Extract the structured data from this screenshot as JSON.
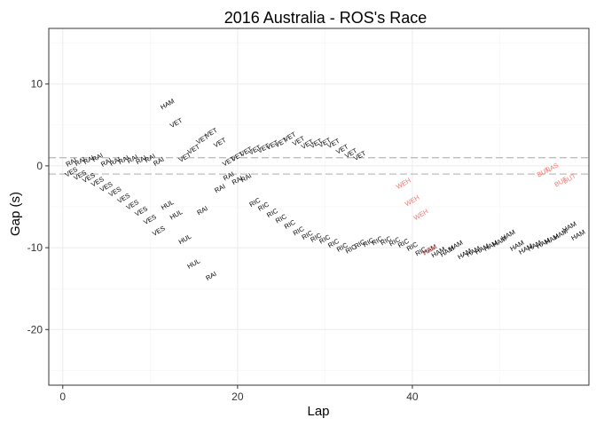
{
  "chart_data": {
    "type": "scatter",
    "title": "2016 Australia - ROS's Race",
    "xlabel": "Lap",
    "ylabel": "Gap (s)",
    "xlim": [
      -1.6,
      60.2
    ],
    "ylim": [
      -26.8,
      16.8
    ],
    "xticks": [
      0,
      20,
      40
    ],
    "yticks": [
      -20,
      -10,
      0,
      10
    ],
    "grid": true,
    "legend": "none",
    "reference_lines": [
      1,
      -1
    ],
    "colors": {
      "default": "#000000",
      "highlight": "#F8766D",
      "reference_line": "#BDBDBD",
      "panel_border": "#333333",
      "grid_major": "#EBEBEB",
      "grid_minor": "#F5F5F5"
    },
    "points": [
      {
        "label": "RAI",
        "x": 1,
        "y": 0.4,
        "c": "default"
      },
      {
        "label": "RAI",
        "x": 2,
        "y": 0.5,
        "c": "default"
      },
      {
        "label": "RAI",
        "x": 3,
        "y": 0.7,
        "c": "default"
      },
      {
        "label": "RAI",
        "x": 4,
        "y": 1.0,
        "c": "default"
      },
      {
        "label": "RAI",
        "x": 5,
        "y": 0.4,
        "c": "default"
      },
      {
        "label": "RAI",
        "x": 6,
        "y": 0.5,
        "c": "default"
      },
      {
        "label": "RAI",
        "x": 7,
        "y": 0.7,
        "c": "default"
      },
      {
        "label": "RAI",
        "x": 8,
        "y": 0.8,
        "c": "default"
      },
      {
        "label": "RAI",
        "x": 9,
        "y": 0.7,
        "c": "default"
      },
      {
        "label": "RAI",
        "x": 10,
        "y": 0.9,
        "c": "default"
      },
      {
        "label": "RAI",
        "x": 11,
        "y": 0.5,
        "c": "default"
      },
      {
        "label": "RAI",
        "x": 18,
        "y": -2.8,
        "c": "default"
      },
      {
        "label": "RAI",
        "x": 19,
        "y": -1.3,
        "c": "default"
      },
      {
        "label": "RAI",
        "x": 20,
        "y": -1.8,
        "c": "default"
      },
      {
        "label": "RAI",
        "x": 21,
        "y": -1.5,
        "c": "default"
      },
      {
        "label": "RAI",
        "x": 16,
        "y": -5.5,
        "c": "default"
      },
      {
        "label": "RAI",
        "x": 17,
        "y": -13.5,
        "c": "default"
      },
      {
        "label": "VES",
        "x": 1,
        "y": -0.8,
        "c": "default"
      },
      {
        "label": "VES",
        "x": 2,
        "y": -1.2,
        "c": "default"
      },
      {
        "label": "VES",
        "x": 3,
        "y": -1.5,
        "c": "default"
      },
      {
        "label": "VES",
        "x": 4,
        "y": -2.0,
        "c": "default"
      },
      {
        "label": "VES",
        "x": 5,
        "y": -2.6,
        "c": "default"
      },
      {
        "label": "VES",
        "x": 6,
        "y": -3.2,
        "c": "default"
      },
      {
        "label": "VES",
        "x": 7,
        "y": -4.0,
        "c": "default"
      },
      {
        "label": "VES",
        "x": 8,
        "y": -4.8,
        "c": "default"
      },
      {
        "label": "VES",
        "x": 9,
        "y": -5.6,
        "c": "default"
      },
      {
        "label": "VES",
        "x": 10,
        "y": -6.6,
        "c": "default"
      },
      {
        "label": "VES",
        "x": 11,
        "y": -8.0,
        "c": "default"
      },
      {
        "label": "HUL",
        "x": 12,
        "y": -4.8,
        "c": "default"
      },
      {
        "label": "HUL",
        "x": 13,
        "y": -6.0,
        "c": "default"
      },
      {
        "label": "HUL",
        "x": 14,
        "y": -9.0,
        "c": "default"
      },
      {
        "label": "HUL",
        "x": 15,
        "y": -12.0,
        "c": "default"
      },
      {
        "label": "HAM",
        "x": 12,
        "y": 7.5,
        "c": "default"
      },
      {
        "label": "VET",
        "x": 13,
        "y": 5.2,
        "c": "default"
      },
      {
        "label": "VET",
        "x": 14,
        "y": 1.0,
        "c": "default"
      },
      {
        "label": "VET",
        "x": 15,
        "y": 2.0,
        "c": "default"
      },
      {
        "label": "VET",
        "x": 16,
        "y": 3.2,
        "c": "default"
      },
      {
        "label": "VET",
        "x": 17,
        "y": 4.0,
        "c": "default"
      },
      {
        "label": "VET",
        "x": 18,
        "y": 2.8,
        "c": "default"
      },
      {
        "label": "VET",
        "x": 19,
        "y": 0.5,
        "c": "default"
      },
      {
        "label": "VET",
        "x": 20,
        "y": 1.1,
        "c": "default"
      },
      {
        "label": "VET",
        "x": 21,
        "y": 1.7,
        "c": "default"
      },
      {
        "label": "VET",
        "x": 22,
        "y": 1.9,
        "c": "default"
      },
      {
        "label": "VET",
        "x": 23,
        "y": 2.1,
        "c": "default"
      },
      {
        "label": "VET",
        "x": 24,
        "y": 2.5,
        "c": "default"
      },
      {
        "label": "VET",
        "x": 25,
        "y": 2.8,
        "c": "default"
      },
      {
        "label": "VET",
        "x": 26,
        "y": 3.5,
        "c": "default"
      },
      {
        "label": "VET",
        "x": 27,
        "y": 3.0,
        "c": "default"
      },
      {
        "label": "VET",
        "x": 28,
        "y": 2.6,
        "c": "default"
      },
      {
        "label": "VET",
        "x": 29,
        "y": 2.7,
        "c": "default"
      },
      {
        "label": "VET",
        "x": 30,
        "y": 2.8,
        "c": "default"
      },
      {
        "label": "VET",
        "x": 31,
        "y": 2.7,
        "c": "default"
      },
      {
        "label": "VET",
        "x": 32,
        "y": 2.0,
        "c": "default"
      },
      {
        "label": "VET",
        "x": 33,
        "y": 1.5,
        "c": "default"
      },
      {
        "label": "VET",
        "x": 34,
        "y": 1.2,
        "c": "default"
      },
      {
        "label": "RIC",
        "x": 22,
        "y": -4.5,
        "c": "default"
      },
      {
        "label": "RIC",
        "x": 23,
        "y": -5.0,
        "c": "default"
      },
      {
        "label": "RIC",
        "x": 24,
        "y": -5.8,
        "c": "default"
      },
      {
        "label": "RIC",
        "x": 25,
        "y": -6.5,
        "c": "default"
      },
      {
        "label": "RIC",
        "x": 26,
        "y": -7.2,
        "c": "default"
      },
      {
        "label": "RIC",
        "x": 27,
        "y": -8.0,
        "c": "default"
      },
      {
        "label": "RIC",
        "x": 28,
        "y": -8.5,
        "c": "default"
      },
      {
        "label": "RIC",
        "x": 29,
        "y": -8.8,
        "c": "default"
      },
      {
        "label": "RIC",
        "x": 30,
        "y": -9.0,
        "c": "default"
      },
      {
        "label": "RIC",
        "x": 31,
        "y": -9.5,
        "c": "default"
      },
      {
        "label": "RIC",
        "x": 32,
        "y": -10.0,
        "c": "default"
      },
      {
        "label": "RIC",
        "x": 33,
        "y": -10.2,
        "c": "default"
      },
      {
        "label": "RIC",
        "x": 34,
        "y": -9.6,
        "c": "default"
      },
      {
        "label": "RIC",
        "x": 35,
        "y": -9.4,
        "c": "default"
      },
      {
        "label": "RIC",
        "x": 36,
        "y": -9.2,
        "c": "default"
      },
      {
        "label": "RIC",
        "x": 37,
        "y": -9.2,
        "c": "default"
      },
      {
        "label": "RIC",
        "x": 38,
        "y": -9.3,
        "c": "default"
      },
      {
        "label": "RIC",
        "x": 39,
        "y": -9.5,
        "c": "default"
      },
      {
        "label": "RIC",
        "x": 40,
        "y": -9.9,
        "c": "default"
      },
      {
        "label": "RIC",
        "x": 41,
        "y": -10.5,
        "c": "default"
      },
      {
        "label": "HAM",
        "x": 42,
        "y": -10.3,
        "c": "default"
      },
      {
        "label": "HAM",
        "x": 43,
        "y": -10.6,
        "c": "default"
      },
      {
        "label": "HAM",
        "x": 44,
        "y": -10.5,
        "c": "default"
      },
      {
        "label": "HAM",
        "x": 45,
        "y": -9.8,
        "c": "default"
      },
      {
        "label": "HAM",
        "x": 46,
        "y": -10.8,
        "c": "default"
      },
      {
        "label": "HAM",
        "x": 47,
        "y": -10.5,
        "c": "default"
      },
      {
        "label": "HAM",
        "x": 48,
        "y": -10.2,
        "c": "default"
      },
      {
        "label": "HAM",
        "x": 49,
        "y": -9.8,
        "c": "default"
      },
      {
        "label": "HAM",
        "x": 50,
        "y": -9.3,
        "c": "default"
      },
      {
        "label": "HAM",
        "x": 51,
        "y": -8.5,
        "c": "default"
      },
      {
        "label": "HAM",
        "x": 52,
        "y": -9.8,
        "c": "default"
      },
      {
        "label": "HAM",
        "x": 53,
        "y": -10.2,
        "c": "default"
      },
      {
        "label": "HAM",
        "x": 54,
        "y": -9.8,
        "c": "default"
      },
      {
        "label": "HAM",
        "x": 55,
        "y": -9.5,
        "c": "default"
      },
      {
        "label": "HAM",
        "x": 56,
        "y": -9.0,
        "c": "default"
      },
      {
        "label": "HAM",
        "x": 57,
        "y": -8.4,
        "c": "default"
      },
      {
        "label": "HAM",
        "x": 58,
        "y": -7.5,
        "c": "default"
      },
      {
        "label": "HAM",
        "x": 59,
        "y": -8.5,
        "c": "default"
      },
      {
        "label": "WEH",
        "x": 39,
        "y": -2.2,
        "c": "highlight"
      },
      {
        "label": "WEH",
        "x": 40,
        "y": -4.3,
        "c": "highlight"
      },
      {
        "label": "WEH",
        "x": 41,
        "y": -6.0,
        "c": "highlight"
      },
      {
        "label": "WEH",
        "x": 42,
        "y": -10.3,
        "c": "highlight"
      },
      {
        "label": "BUT",
        "x": 55,
        "y": -0.8,
        "c": "highlight"
      },
      {
        "label": "NAS",
        "x": 56,
        "y": -0.3,
        "c": "highlight"
      },
      {
        "label": "BUT",
        "x": 57,
        "y": -2.0,
        "c": "highlight"
      },
      {
        "label": "BUT",
        "x": 58,
        "y": -1.6,
        "c": "highlight"
      }
    ]
  }
}
